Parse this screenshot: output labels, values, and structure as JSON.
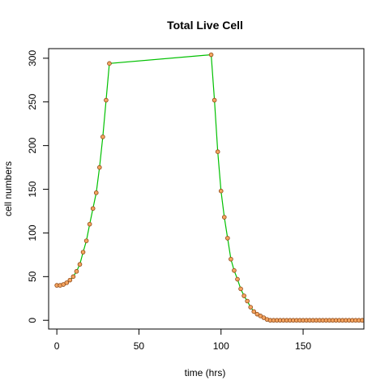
{
  "chart_data": {
    "type": "scatter",
    "title": "Total Live Cell",
    "xlabel": "time (hrs)",
    "ylabel": "cell numbers",
    "xlim": [
      -5,
      187
    ],
    "ylim": [
      -10,
      311
    ],
    "x_ticks": [
      0,
      50,
      100,
      150
    ],
    "y_ticks": [
      0,
      50,
      100,
      150,
      200,
      250,
      300
    ],
    "grid": false,
    "line_color": "#00c000",
    "point_fill": "#f4a460",
    "point_edge": "#8b4513",
    "series": [
      {
        "x": [
          0,
          2,
          4,
          6,
          8,
          10,
          12,
          14,
          16,
          18,
          20,
          22,
          24,
          26,
          28,
          30,
          32,
          94,
          96,
          98,
          100,
          102,
          104,
          106,
          108,
          110,
          112,
          114,
          116,
          118,
          120,
          122,
          124,
          126,
          128,
          130,
          132,
          134,
          136,
          138,
          140,
          142,
          144,
          146,
          148,
          150,
          152,
          154,
          156,
          158,
          160,
          162,
          164,
          166,
          168,
          170,
          172,
          174,
          176,
          178,
          180,
          182,
          184,
          186
        ],
        "y": [
          40,
          40,
          41,
          43,
          46,
          50,
          56,
          64,
          78,
          91,
          110,
          128,
          146,
          175,
          210,
          252,
          294,
          304,
          252,
          193,
          148,
          118,
          94,
          70,
          57,
          47,
          36,
          28,
          22,
          15,
          10,
          7,
          5,
          3,
          1,
          0,
          0,
          0,
          0,
          0,
          0,
          0,
          0,
          0,
          0,
          0,
          0,
          0,
          0,
          0,
          0,
          0,
          0,
          0,
          0,
          0,
          0,
          0,
          0,
          0,
          0,
          0,
          0,
          0
        ]
      }
    ]
  }
}
